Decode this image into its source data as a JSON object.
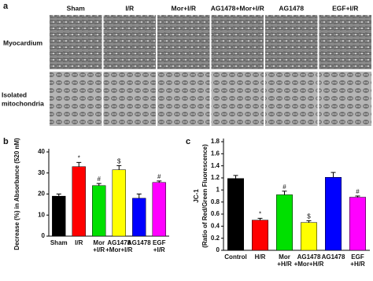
{
  "panel_a": {
    "label": "a",
    "column_labels": [
      "Sham",
      "I/R",
      "Mor+I/R",
      "AG1478+Mor+I/R",
      "AG1478",
      "EGF+I/R"
    ],
    "row_labels": [
      "Myocardium",
      [
        "Isolated",
        "mitochondria"
      ]
    ]
  },
  "chart_data": [
    {
      "type": "bar",
      "panel_label": "b",
      "ylabel": [
        "Decrease (%) in Absorbance (520 nM)"
      ],
      "categories": [
        [
          "Sham"
        ],
        [
          "I/R"
        ],
        [
          "Mor",
          "+I/R"
        ],
        [
          "AG1478",
          "+Mor+I/R"
        ],
        [
          "AG1478"
        ],
        [
          "EGF",
          "+I/R"
        ]
      ],
      "values": [
        19,
        33,
        24,
        31.5,
        18,
        25.5
      ],
      "errors": [
        1,
        2,
        1,
        2,
        2,
        0.7
      ],
      "annotations": [
        null,
        "*",
        "#",
        "$",
        null,
        "#"
      ],
      "colors": [
        "#000000",
        "#ff0000",
        "#00e000",
        "#ffff00",
        "#0000ff",
        "#ff00ff"
      ],
      "ylim": [
        0,
        40
      ],
      "yticks": [
        0,
        10,
        20,
        30,
        40
      ]
    },
    {
      "type": "bar",
      "panel_label": "c",
      "ylabel": [
        "JC-1",
        "(Ratio of Red/Green Fluorescence)"
      ],
      "categories": [
        [
          "Control"
        ],
        [
          "H/R"
        ],
        [
          "Mor",
          "+H/R"
        ],
        [
          "AG1478",
          "+Mor+H/R"
        ],
        [
          "AG1478"
        ],
        [
          "EGF",
          "+H/R"
        ]
      ],
      "values": [
        1.19,
        0.5,
        0.92,
        0.46,
        1.21,
        0.88
      ],
      "errors": [
        0.05,
        0.03,
        0.06,
        0.03,
        0.08,
        0.02
      ],
      "annotations": [
        null,
        "*",
        "#",
        "$",
        null,
        "#"
      ],
      "colors": [
        "#000000",
        "#ff0000",
        "#00e000",
        "#ffff00",
        "#0000ff",
        "#ff00ff"
      ],
      "ylim": [
        0,
        1.8
      ],
      "yticks": [
        0,
        0.2,
        0.4,
        0.6,
        0.8,
        1,
        1.2,
        1.4,
        1.6,
        1.8
      ]
    }
  ]
}
